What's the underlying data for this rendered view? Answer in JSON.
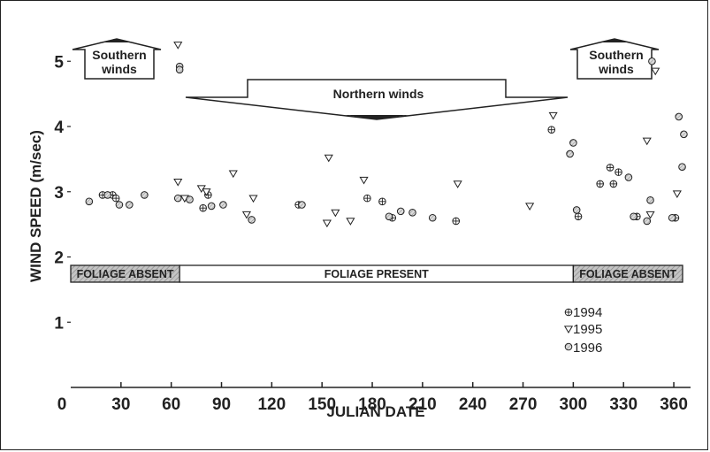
{
  "chart_data": {
    "type": "scatter",
    "xlabel": "JULIAN DATE",
    "ylabel": "WIND SPEED (m/sec)",
    "xlim": [
      0,
      370
    ],
    "ylim": [
      0,
      5.6
    ],
    "x_ticks": [
      "0",
      "30",
      "60",
      "90",
      "120",
      "150",
      "180",
      "210",
      "240",
      "270",
      "300",
      "330",
      "360"
    ],
    "y_ticks": [
      "1",
      "2",
      "3",
      "4",
      "5"
    ],
    "grid": false,
    "legend_position": "lower-right",
    "series": [
      {
        "name": "1994",
        "marker": "circle-cross",
        "points": [
          [
            19,
            2.95
          ],
          [
            25,
            2.95
          ],
          [
            27,
            2.9
          ],
          [
            79,
            2.75
          ],
          [
            82,
            2.95
          ],
          [
            136,
            2.8
          ],
          [
            177,
            2.9
          ],
          [
            186,
            2.85
          ],
          [
            192,
            2.6
          ],
          [
            230,
            2.55
          ],
          [
            287,
            3.95
          ],
          [
            303,
            2.62
          ],
          [
            316,
            3.12
          ],
          [
            322,
            3.37
          ],
          [
            324,
            3.12
          ],
          [
            327,
            3.3
          ],
          [
            338,
            2.62
          ],
          [
            361,
            2.6
          ]
        ]
      },
      {
        "name": "1995",
        "marker": "triangle-down",
        "points": [
          [
            64,
            5.25
          ],
          [
            64,
            3.15
          ],
          [
            68,
            2.9
          ],
          [
            78,
            3.05
          ],
          [
            81,
            3.0
          ],
          [
            97,
            3.28
          ],
          [
            105,
            2.65
          ],
          [
            109,
            2.9
          ],
          [
            153,
            2.52
          ],
          [
            154,
            3.52
          ],
          [
            158,
            2.68
          ],
          [
            167,
            2.55
          ],
          [
            175,
            3.18
          ],
          [
            231,
            3.12
          ],
          [
            274,
            2.78
          ],
          [
            288,
            4.17
          ],
          [
            344,
            3.78
          ],
          [
            346,
            2.65
          ],
          [
            349,
            4.85
          ],
          [
            362,
            2.97
          ]
        ]
      },
      {
        "name": "1996",
        "marker": "circle-hatch",
        "points": [
          [
            11,
            2.85
          ],
          [
            22,
            2.95
          ],
          [
            29,
            2.8
          ],
          [
            35,
            2.8
          ],
          [
            44,
            2.95
          ],
          [
            65,
            4.92
          ],
          [
            65,
            4.87
          ],
          [
            64,
            2.9
          ],
          [
            71,
            2.88
          ],
          [
            84,
            2.78
          ],
          [
            91,
            2.8
          ],
          [
            108,
            2.57
          ],
          [
            138,
            2.8
          ],
          [
            190,
            2.62
          ],
          [
            197,
            2.7
          ],
          [
            204,
            2.68
          ],
          [
            216,
            2.6
          ],
          [
            298,
            3.58
          ],
          [
            300,
            3.75
          ],
          [
            302,
            2.72
          ],
          [
            333,
            3.22
          ],
          [
            336,
            2.62
          ],
          [
            344,
            2.55
          ],
          [
            346,
            2.87
          ],
          [
            347,
            5.0
          ],
          [
            359,
            2.6
          ],
          [
            363,
            4.15
          ],
          [
            365,
            3.38
          ],
          [
            366,
            3.88
          ]
        ]
      }
    ]
  },
  "annotations": {
    "southern_left": [
      "Southern",
      "winds"
    ],
    "southern_right": [
      "Southern",
      "winds"
    ],
    "northern": "Northern winds"
  },
  "foliage_bands": [
    {
      "label": "FOLIAGE ABSENT",
      "start": 0,
      "end": 65,
      "shaded": true
    },
    {
      "label": "FOLIAGE PRESENT",
      "start": 65,
      "end": 300,
      "shaded": false
    },
    {
      "label": "FOLIAGE ABSENT",
      "start": 300,
      "end": 370,
      "shaded": true
    }
  ],
  "colors": {
    "ink": "#222222",
    "band_shade": "#b5b5b5",
    "background": "#ffffff"
  }
}
